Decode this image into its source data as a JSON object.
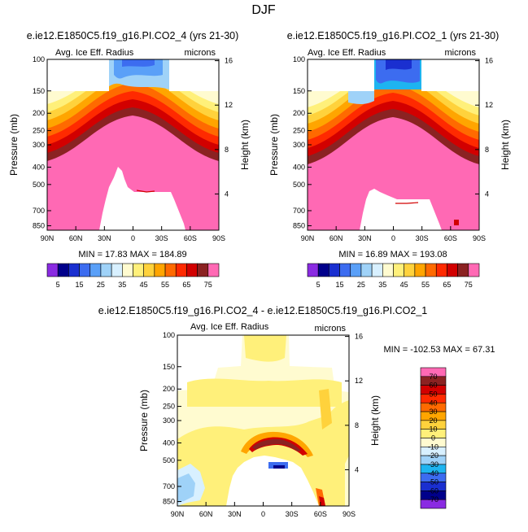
{
  "page_title": "DJF",
  "chart_data": [
    {
      "type": "heatmap",
      "title": "e.ie12.E1850C5.f19_g16.PI.CO2_4 (yrs 21-30)",
      "subtitle_left": "Avg. Ice Eff. Radius",
      "subtitle_right": "microns",
      "xlabel": "",
      "ylabel": "Pressure (mb)",
      "ylabel_right": "Height (km)",
      "x_ticks": [
        "90N",
        "60N",
        "30N",
        "0",
        "30S",
        "60S",
        "90S"
      ],
      "y_ticks": [
        "100",
        "150",
        "200",
        "250",
        "300",
        "400",
        "500",
        "700",
        "850"
      ],
      "y_ticks_right": [
        "16",
        "12",
        "8",
        "4"
      ],
      "stats": "MIN = 17.83 MAX = 184.89",
      "min": 17.83,
      "max": 184.89
    },
    {
      "type": "heatmap",
      "title": "e.ie12.E1850C5.f19_g16.PI.CO2_1 (yrs 21-30)",
      "subtitle_left": "Avg. Ice Eff. Radius",
      "subtitle_right": "microns",
      "xlabel": "",
      "ylabel": "Pressure (mb)",
      "ylabel_right": "Height (km)",
      "x_ticks": [
        "90N",
        "60N",
        "30N",
        "0",
        "30S",
        "60S",
        "90S"
      ],
      "y_ticks": [
        "100",
        "150",
        "200",
        "250",
        "300",
        "400",
        "500",
        "700",
        "850"
      ],
      "y_ticks_right": [
        "16",
        "12",
        "8",
        "4"
      ],
      "stats": "MIN = 16.89 MAX = 193.08",
      "min": 16.89,
      "max": 193.08
    },
    {
      "type": "heatmap",
      "title": "e.ie12.E1850C5.f19_g16.PI.CO2_4 - e.ie12.E1850C5.f19_g16.PI.CO2_1",
      "subtitle_left": "Avg. Ice Eff. Radius",
      "subtitle_right": "microns",
      "xlabel": "",
      "ylabel": "Pressure (mb)",
      "ylabel_right": "Height (km)",
      "x_ticks": [
        "90N",
        "60N",
        "30N",
        "0",
        "30S",
        "60S",
        "90S"
      ],
      "y_ticks": [
        "100",
        "150",
        "200",
        "250",
        "300",
        "400",
        "500",
        "700",
        "850"
      ],
      "y_ticks_right": [
        "16",
        "12",
        "8",
        "4"
      ],
      "stats": "MIN = -102.53 MAX = 67.31",
      "min": -102.53,
      "max": 67.31
    }
  ],
  "colorbar_top": {
    "labels": [
      "5",
      "15",
      "25",
      "35",
      "45",
      "55",
      "65",
      "75"
    ],
    "colors": [
      "#8a2be2",
      "#00008b",
      "#1a2fd0",
      "#3c6cf0",
      "#5aa0f8",
      "#9fd2f8",
      "#d8f0ff",
      "#fffbd0",
      "#fff07a",
      "#ffd23c",
      "#ffa500",
      "#ff6a00",
      "#ff2a00",
      "#d20000",
      "#8b2222",
      "#ff69b4"
    ]
  },
  "colorbar_diff": {
    "labels": [
      "70",
      "60",
      "50",
      "40",
      "30",
      "20",
      "10",
      "0",
      "-10",
      "-20",
      "-30",
      "-40",
      "-50",
      "-60",
      "-70"
    ],
    "colors": [
      "#ff69b4",
      "#8b2222",
      "#d20000",
      "#ff2a00",
      "#ff6a00",
      "#ffa500",
      "#ffd23c",
      "#fff07a",
      "#fffbd0",
      "#d8f0ff",
      "#9fd2f8",
      "#1eb4f0",
      "#3c6cf0",
      "#1a2fd0",
      "#00008b",
      "#8a2be2"
    ]
  }
}
